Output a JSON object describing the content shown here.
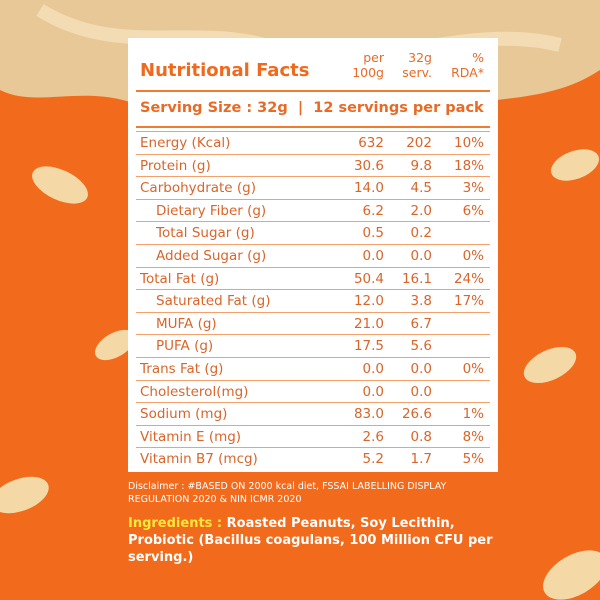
{
  "header": {
    "title": "Nutritional Facts",
    "columns": [
      "per\n100g",
      "32g\nserv.",
      "%\nRDA*"
    ]
  },
  "serving": "Serving Size : 32g  |  12 servings per pack",
  "table": {
    "rows": [
      {
        "name": "Energy (Kcal)",
        "per100": "632",
        "serv": "202",
        "rda": "10%"
      },
      {
        "name": "Protein (g)",
        "per100": "30.6",
        "serv": "9.8",
        "rda": "18%"
      },
      {
        "name": "Carbohydrate (g)",
        "per100": "14.0",
        "serv": "4.5",
        "rda": "3%"
      },
      {
        "name": "Dietary Fiber (g)",
        "per100": "6.2",
        "serv": "2.0",
        "rda": "6%",
        "indent": true
      },
      {
        "name": "Total Sugar (g)",
        "per100": "0.5",
        "serv": "0.2",
        "indent": true
      },
      {
        "name": "Added Sugar (g)",
        "per100": "0.0",
        "serv": "0.0",
        "rda": "0%",
        "indent": true
      },
      {
        "name": "Total Fat (g)",
        "per100": "50.4",
        "serv": "16.1",
        "rda": "24%"
      },
      {
        "name": "Saturated Fat (g)",
        "per100": "12.0",
        "serv": "3.8",
        "rda": "17%",
        "indent": true
      },
      {
        "name": "MUFA (g)",
        "per100": "21.0",
        "serv": "6.7",
        "indent": true
      },
      {
        "name": "PUFA (g)",
        "per100": "17.5",
        "serv": "5.6",
        "indent": true
      },
      {
        "name": "Trans Fat (g)",
        "per100": "0.0",
        "serv": "0.0",
        "rda": "0%"
      },
      {
        "name": "Cholesterol(mg)",
        "per100": "0.0",
        "serv": "0.0"
      },
      {
        "name": "Sodium (mg)",
        "per100": "83.0",
        "serv": "26.6",
        "rda": "1%"
      },
      {
        "name": "Vitamin E (mg)",
        "per100": "2.6",
        "serv": "0.8",
        "rda": "8%"
      },
      {
        "name": "Vitamin B7 (mcg)",
        "per100": "5.2",
        "serv": "1.7",
        "rda": "5%"
      }
    ]
  },
  "disclaimer": "Disclaimer : #BASED ON 2000 kcal diet, FSSAI LABELLING DISPLAY REGULATION 2020 & NIN ICMR 2020",
  "ingredients": {
    "label": "Ingredients :",
    "text": "Roasted Peanuts, Soy Lecithin, Probiotic (Bacillus coagulans, 100 Million CFU per serving.)"
  }
}
